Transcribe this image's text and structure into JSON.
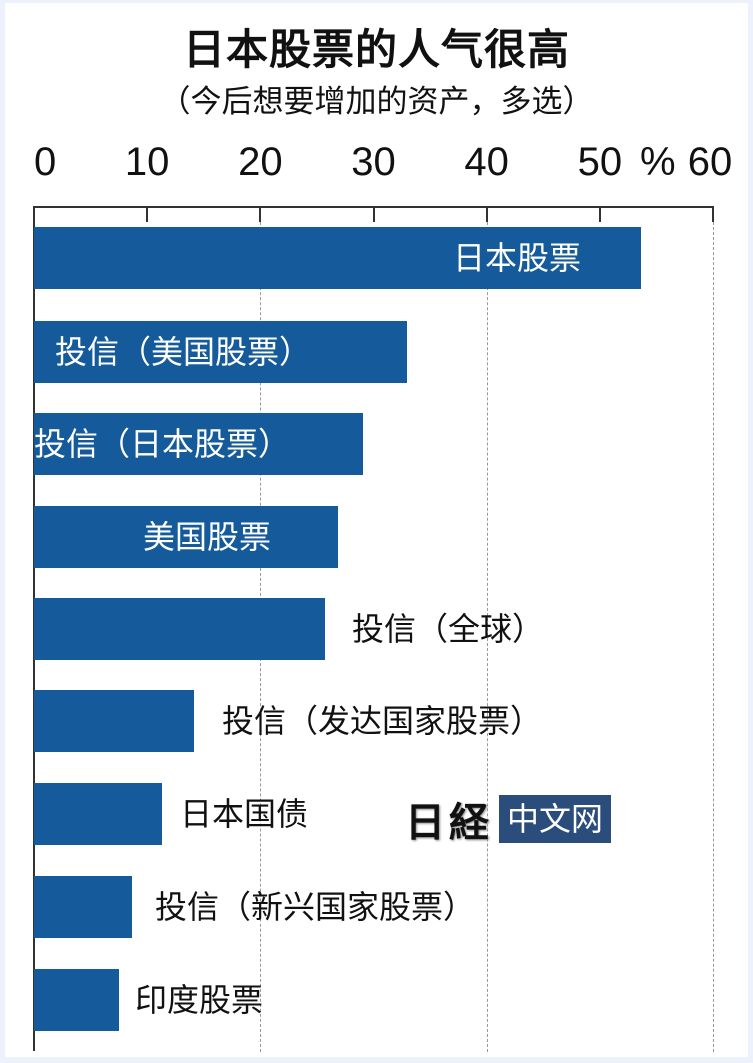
{
  "chart_data": {
    "type": "bar",
    "orientation": "horizontal",
    "title": "日本股票的人气很高",
    "subtitle": "（今后想要增加的资产，多选）",
    "xlabel": "%",
    "ylabel": "",
    "xlim": [
      0,
      60
    ],
    "ticks": [
      "0",
      "10",
      "20",
      "30",
      "40",
      "50",
      "60"
    ],
    "unit_label": "%",
    "grid": "dashed at 20, 40, 60",
    "categories": [
      "日本股票",
      "投信（美国股票）",
      "投信（日本股票）",
      "美国股票",
      "投信（全球）",
      "投信（发达国家股票）",
      "日本国债",
      "投信（新兴国家股票）",
      "印度股票"
    ],
    "values": [
      53.6,
      33.0,
      29.1,
      26.9,
      25.7,
      14.1,
      11.3,
      8.7,
      7.5
    ],
    "bar_color": "#155b9b"
  },
  "watermark": {
    "mark": "日経",
    "box_text": "中文网"
  }
}
